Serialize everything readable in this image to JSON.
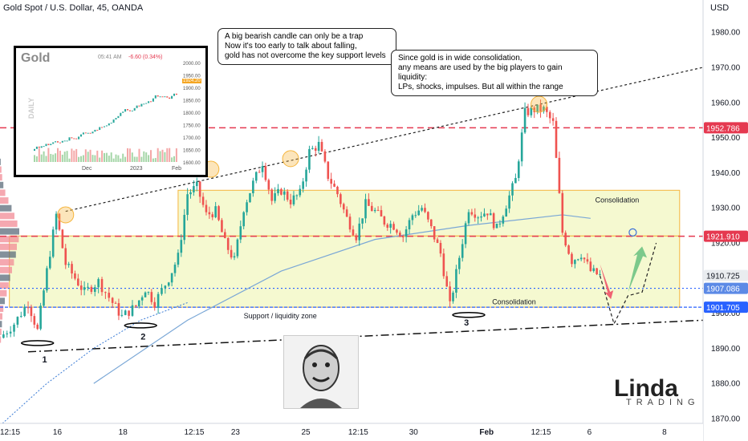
{
  "header": {
    "title": "Gold Spot / U.S. Dollar, 45, OANDA",
    "currency": "USD"
  },
  "colors": {
    "up": "#26a69a",
    "down": "#ef5350",
    "resistance": "#e53950",
    "support": "#2962ff",
    "zone_fill": "#f3f7c4",
    "zone_border": "#f5b53c",
    "up_arrow": "#7cc98b",
    "down_arrow": "#f06272"
  },
  "annotations": {
    "callout1": "A big bearish candle can only be a trap\nNow it's too early to talk about falling,\ngold has not overcome the key support levels",
    "callout2": "Since gold is in wide consolidation,\nany means are used by the big players to gain liquidity:\nLPs, shocks, impulses. But all within the range",
    "consolidation_upper": "Consolidation",
    "consolidation_lower": "Consolidation",
    "support_zone": "Support / liquidity zone",
    "point_1": "1",
    "point_2": "2",
    "point_3": "3"
  },
  "inset": {
    "title": "Gold",
    "time": "05:41 AM",
    "change": "-6.60 (0.34%)",
    "price": "1924.20",
    "side_label": "DAILY",
    "axis": [
      "2000.00",
      "1950.00",
      "1900.00",
      "1850.00",
      "1800.00",
      "1750.00",
      "1700.00",
      "1650.00",
      "1600.00"
    ],
    "x_labels": [
      "Dec",
      "2023",
      "Feb"
    ]
  },
  "logo": {
    "main": "Linda",
    "sub": "TRADING"
  },
  "chart_data": {
    "type": "candlestick",
    "ylim": [
      1870,
      1990
    ],
    "y_ticks": [
      1870,
      1880,
      1890,
      1900,
      1910,
      1920,
      1930,
      1940,
      1950,
      1960,
      1970,
      1980
    ],
    "x_tick_labels": [
      "12:15",
      "16",
      "18",
      "12:15",
      "23",
      "25",
      "12:15",
      "30",
      "Feb",
      "12:15",
      "6",
      "8"
    ],
    "price_labels": [
      {
        "value": 1952.786,
        "text": "1952.786",
        "style": "resistance"
      },
      {
        "value": 1921.91,
        "text": "1921.910",
        "style": "resistance"
      },
      {
        "value": 1910.725,
        "text": "1910.725",
        "style": "last"
      },
      {
        "value": 1907.086,
        "text": "1907.086",
        "style": "support_light"
      },
      {
        "value": 1901.705,
        "text": "1901.705",
        "style": "support"
      }
    ],
    "levels": [
      1952.786,
      1921.91,
      1907.086,
      1901.705
    ],
    "path": [
      [
        0,
        1893
      ],
      [
        3,
        1897
      ],
      [
        6,
        1903
      ],
      [
        8,
        1895
      ],
      [
        10,
        1912
      ],
      [
        12,
        1928
      ],
      [
        14,
        1914
      ],
      [
        16,
        1910
      ],
      [
        18,
        1906
      ],
      [
        21,
        1909
      ],
      [
        24,
        1903
      ],
      [
        26,
        1899
      ],
      [
        29,
        1902
      ],
      [
        31,
        1907
      ],
      [
        33,
        1903
      ],
      [
        36,
        1910
      ],
      [
        38,
        1916
      ],
      [
        40,
        1934
      ],
      [
        42,
        1936
      ],
      [
        44,
        1928
      ],
      [
        46,
        1929
      ],
      [
        48,
        1920
      ],
      [
        50,
        1915
      ],
      [
        52,
        1930
      ],
      [
        54,
        1937
      ],
      [
        56,
        1943
      ],
      [
        58,
        1932
      ],
      [
        60,
        1935
      ],
      [
        62,
        1932
      ],
      [
        64,
        1934
      ],
      [
        66,
        1946
      ],
      [
        68,
        1948
      ],
      [
        70,
        1939
      ],
      [
        72,
        1934
      ],
      [
        74,
        1927
      ],
      [
        76,
        1922
      ],
      [
        78,
        1931
      ],
      [
        80,
        1929
      ],
      [
        82,
        1926
      ],
      [
        84,
        1925
      ],
      [
        86,
        1922
      ],
      [
        88,
        1928
      ],
      [
        90,
        1930
      ],
      [
        92,
        1924
      ],
      [
        94,
        1917
      ],
      [
        96,
        1902
      ],
      [
        98,
        1916
      ],
      [
        100,
        1930
      ],
      [
        102,
        1928
      ],
      [
        104,
        1929
      ],
      [
        106,
        1924
      ],
      [
        108,
        1931
      ],
      [
        110,
        1938
      ],
      [
        112,
        1957
      ],
      [
        114,
        1958
      ],
      [
        116,
        1958
      ],
      [
        118,
        1954
      ],
      [
        120,
        1923
      ],
      [
        122,
        1915
      ],
      [
        124,
        1917
      ],
      [
        126,
        1912
      ],
      [
        128,
        1910.7
      ]
    ],
    "scenario_path": [
      [
        128,
        1910.7
      ],
      [
        131,
        1897
      ],
      [
        134,
        1905
      ],
      [
        137,
        1906
      ],
      [
        140,
        1920
      ]
    ],
    "down_arrow": {
      "from": [
        128,
        1914
      ],
      "to": [
        130,
        1904
      ]
    },
    "up_arrow": {
      "from": [
        134,
        1906
      ],
      "to": [
        137,
        1919
      ]
    },
    "consolidation_upper": {
      "x": [
        38,
        145
      ],
      "y": [
        1922,
        1935
      ]
    },
    "consolidation_lower": {
      "x": [
        2,
        145
      ],
      "y": [
        1901.705,
        1922
      ]
    }
  }
}
